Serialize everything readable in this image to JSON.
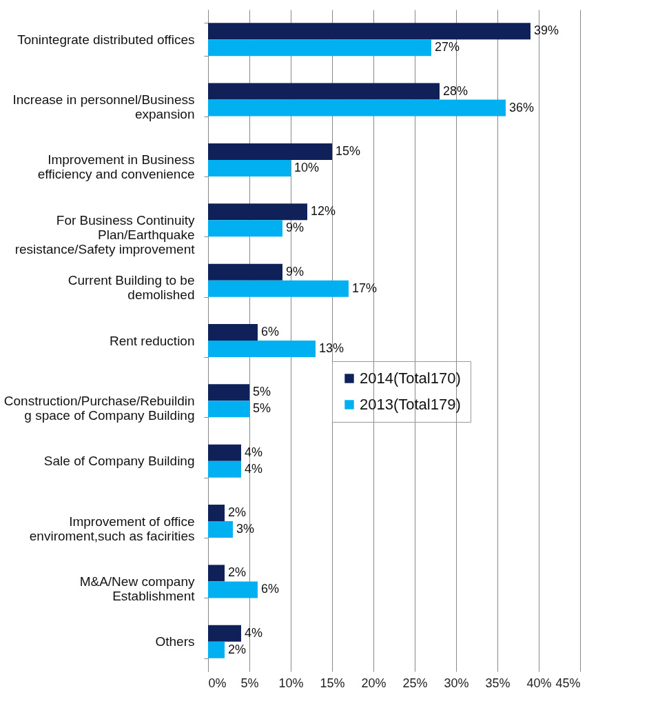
{
  "chart_data": {
    "type": "bar",
    "orientation": "horizontal",
    "categories": [
      "Tonintegrate distributed offices",
      "Increase in personnel/Business\nexpansion",
      "Improvement in Business\nefficiency and convenience",
      "For Business Continuity\nPlan/Earthquake\nresistance/Safety improvement",
      "Current Building to be\ndemolished",
      "Rent reduction",
      "Construction/Purchase/Rebuildin\ng space of Company Building",
      "Sale of Company Building",
      "Improvement of office\nenviroment,such as facirities",
      "M&A/New company\nEstablishment",
      "Others"
    ],
    "series": [
      {
        "name": "2014(Total170)",
        "color": "#0f2158",
        "values": [
          39,
          28,
          15,
          12,
          9,
          6,
          5,
          4,
          2,
          2,
          4
        ],
        "value_labels": [
          "39%",
          "28%",
          "15%",
          "12%",
          "9%",
          "6%",
          "5%",
          "4%",
          "2%",
          "2%",
          "4%"
        ]
      },
      {
        "name": "2013(Total179)",
        "color": "#00b0f0",
        "values": [
          27,
          36,
          10,
          9,
          17,
          13,
          5,
          4,
          3,
          6,
          2
        ],
        "value_labels": [
          "27%",
          "36%",
          "10%",
          "9%",
          "17%",
          "13%",
          "5%",
          "4%",
          "3%",
          "6%",
          "2%"
        ]
      }
    ],
    "xlim": [
      0,
      45
    ],
    "xticks": [
      {
        "value": 0,
        "label": "0%"
      },
      {
        "value": 5,
        "label": "5%"
      },
      {
        "value": 10,
        "label": "10%"
      },
      {
        "value": 15,
        "label": "15%"
      },
      {
        "value": 20,
        "label": "20%"
      },
      {
        "value": 25,
        "label": "25%"
      },
      {
        "value": 30,
        "label": "30%"
      },
      {
        "value": 35,
        "label": "35%"
      },
      {
        "value": 40,
        "label": "40%"
      },
      {
        "value": 45,
        "label": "45%"
      }
    ],
    "grid": "x",
    "legend": "right"
  }
}
